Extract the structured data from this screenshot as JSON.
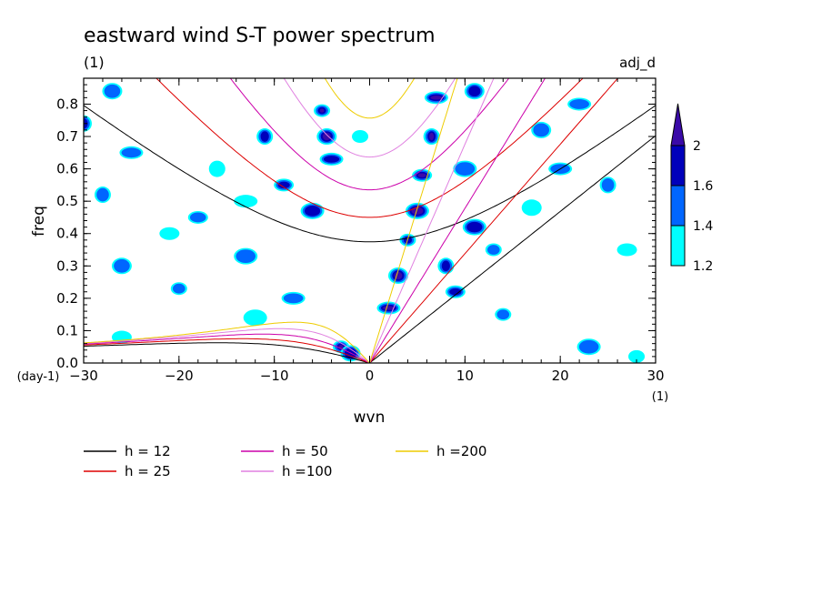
{
  "chart_data": {
    "type": "contour",
    "title": "eastward wind S-T power spectrum",
    "subtitle": "(1)",
    "top_right_label": "adj_d",
    "xlabel": "wvn",
    "ylabel": "freq",
    "x_unit": "(1)",
    "y_unit": "(day-1)",
    "xlim": [
      -30,
      30
    ],
    "ylim": [
      0,
      0.88
    ],
    "x_ticks": [
      -30,
      -20,
      -10,
      0,
      10,
      20,
      30
    ],
    "x_tick_labels": [
      "−30",
      "−20",
      "−10",
      "0",
      "10",
      "20",
      "30"
    ],
    "y_ticks": [
      0,
      0.1,
      0.2,
      0.3,
      0.4,
      0.5,
      0.6,
      0.7,
      0.8
    ],
    "y_tick_labels": [
      "0.0",
      "0.1",
      "0.2",
      "0.3",
      "0.4",
      "0.5",
      "0.6",
      "0.7",
      "0.8"
    ],
    "colorbar": {
      "levels": [
        1.2,
        1.4,
        1.6,
        2
      ],
      "level_labels": [
        "1.2",
        "1.4",
        "1.6",
        "2"
      ],
      "colors": [
        "#00ffff",
        "#0066ff",
        "#0000bb",
        "#3a0aa8"
      ]
    },
    "contour_blobs": [
      {
        "x": -5,
        "y": 0.78,
        "level": 3
      },
      {
        "x": -4.5,
        "y": 0.7,
        "level": 3
      },
      {
        "x": -4,
        "y": 0.63,
        "level": 2
      },
      {
        "x": -11,
        "y": 0.7,
        "level": 2
      },
      {
        "x": -9,
        "y": 0.55,
        "level": 2
      },
      {
        "x": -6,
        "y": 0.47,
        "level": 2
      },
      {
        "x": -3,
        "y": 0.05,
        "level": 3
      },
      {
        "x": -2,
        "y": 0.03,
        "level": 2
      },
      {
        "x": 7,
        "y": 0.82,
        "level": 3
      },
      {
        "x": 6.5,
        "y": 0.7,
        "level": 3
      },
      {
        "x": 5.5,
        "y": 0.58,
        "level": 3
      },
      {
        "x": 5,
        "y": 0.47,
        "level": 3
      },
      {
        "x": 4,
        "y": 0.38,
        "level": 2
      },
      {
        "x": 3,
        "y": 0.27,
        "level": 3
      },
      {
        "x": 2,
        "y": 0.17,
        "level": 3
      },
      {
        "x": 8,
        "y": 0.3,
        "level": 2
      },
      {
        "x": 9,
        "y": 0.22,
        "level": 2
      },
      {
        "x": 11,
        "y": 0.42,
        "level": 2
      },
      {
        "x": 13,
        "y": 0.35,
        "level": 1
      },
      {
        "x": 11,
        "y": 0.84,
        "level": 2
      },
      {
        "x": -25,
        "y": 0.65,
        "level": 1
      },
      {
        "x": -28,
        "y": 0.52,
        "level": 1
      },
      {
        "x": -18,
        "y": 0.45,
        "level": 1
      },
      {
        "x": -13,
        "y": 0.33,
        "level": 1
      },
      {
        "x": -20,
        "y": 0.23,
        "level": 1
      },
      {
        "x": -26,
        "y": 0.3,
        "level": 1
      },
      {
        "x": -8,
        "y": 0.2,
        "level": 1
      },
      {
        "x": -30,
        "y": 0.74,
        "level": 2
      },
      {
        "x": -26,
        "y": 0.08,
        "level": 0
      },
      {
        "x": -12,
        "y": 0.14,
        "level": 0
      },
      {
        "x": 14,
        "y": 0.15,
        "level": 1
      },
      {
        "x": 18,
        "y": 0.72,
        "level": 1
      },
      {
        "x": 22,
        "y": 0.8,
        "level": 1
      },
      {
        "x": 25,
        "y": 0.55,
        "level": 1
      },
      {
        "x": 27,
        "y": 0.35,
        "level": 0
      },
      {
        "x": 23,
        "y": 0.05,
        "level": 1
      },
      {
        "x": 28,
        "y": 0.02,
        "level": 0
      },
      {
        "x": 17,
        "y": 0.48,
        "level": 0
      },
      {
        "x": 20,
        "y": 0.6,
        "level": 1
      },
      {
        "x": -16,
        "y": 0.6,
        "level": 0
      },
      {
        "x": -21,
        "y": 0.4,
        "level": 0
      },
      {
        "x": 10,
        "y": 0.6,
        "level": 1
      },
      {
        "x": -1,
        "y": 0.7,
        "level": 0
      },
      {
        "x": -27,
        "y": 0.84,
        "level": 1
      },
      {
        "x": -13,
        "y": 0.5,
        "level": 0
      }
    ],
    "series": [
      {
        "name": "h = 12",
        "color": "#000000",
        "h": 12
      },
      {
        "name": "h = 25",
        "color": "#dd0000",
        "h": 25
      },
      {
        "name": "h = 50",
        "color": "#cc00aa",
        "h": 50
      },
      {
        "name": "h =100",
        "color": "#e080e0",
        "h": 100
      },
      {
        "name": "h =200",
        "color": "#eecc00",
        "h": 200
      }
    ]
  }
}
